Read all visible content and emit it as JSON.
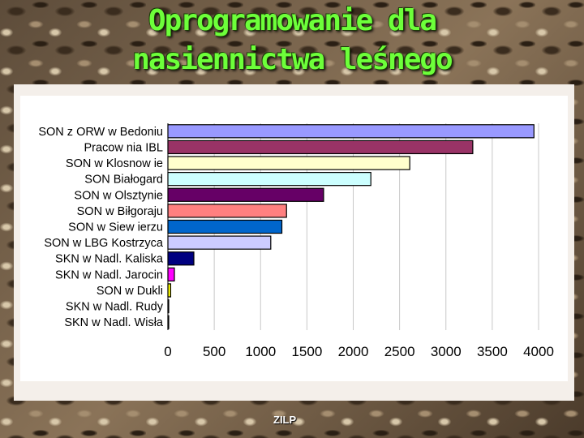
{
  "slide": {
    "title_line1": "Oprogramowanie dla",
    "title_line2": "nasiennictwa leśnego",
    "footer_tag": "ZILP"
  },
  "chart_data": {
    "type": "bar",
    "orientation": "horizontal",
    "categories": [
      "SON z ORW w Bedoniu",
      "Pracow nia IBL",
      "SON w Klosnow ie",
      "SON Białogard",
      "SON w Olsztynie",
      "SON w Biłgoraju",
      "SON w Siew ierzu",
      "SON w LBG Kostrzyca",
      "SKN w Nadl. Kaliska",
      "SKN w Nadl. Jarocin",
      "SON w Dukli",
      "SKN w Nadl. Rudy",
      "SKN w Nadl. Wisła"
    ],
    "values": [
      3950,
      3290,
      2610,
      2190,
      1680,
      1280,
      1230,
      1110,
      280,
      70,
      30,
      8,
      5
    ],
    "colors": [
      "#9999ff",
      "#993366",
      "#ffffcc",
      "#ccffff",
      "#660066",
      "#ff8080",
      "#0066cc",
      "#ccccff",
      "#000080",
      "#ff00ff",
      "#ffff00",
      "#00ffff",
      "#800080"
    ],
    "xlim": [
      0,
      4000
    ],
    "x_ticks": [
      0,
      500,
      1000,
      1500,
      2000,
      2500,
      3000,
      3500,
      4000
    ],
    "grid": "vertical",
    "legend": "none"
  }
}
